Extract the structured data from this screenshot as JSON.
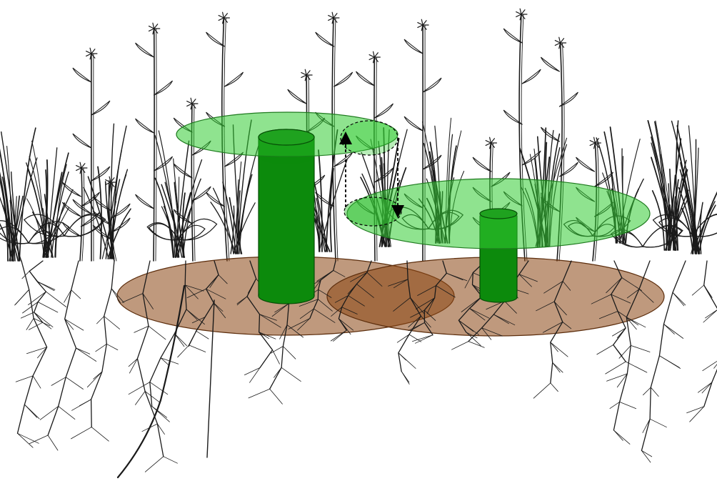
{
  "diagram": {
    "description_text": "",
    "colors": {
      "background": "#ffffff",
      "ink": "#1a1a1a",
      "canopy_fill": "#33cc33",
      "canopy_stroke": "#1f7a1f",
      "stem_fill": "#0c8a0c",
      "stem_dark": "#066306",
      "stem_top": "#27a827",
      "root_zone_fill": "#8b4513",
      "root_zone_stroke": "#5c2d0c",
      "arrow": "#000000"
    },
    "elements": {
      "canopies": [
        "canopy-large",
        "canopy-small"
      ],
      "stems": [
        "stem-tall",
        "stem-short"
      ],
      "root_zones": [
        "root-zone-left",
        "root-zone-right"
      ],
      "overlap_arrows": [
        "arrow-up",
        "arrow-down"
      ]
    }
  }
}
